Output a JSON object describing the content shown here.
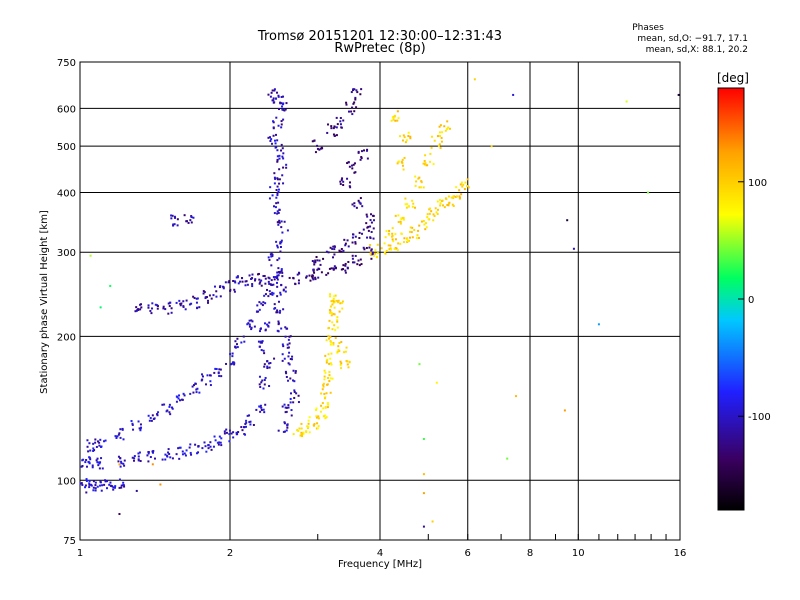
{
  "chart_data": {
    "type": "scatter",
    "title": "Tromsø 20151201 12:30:00–12:31:43",
    "subtitle": "RwPretec (8p)",
    "xlabel": "Frequency [MHz]",
    "ylabel": "Stationary phase Virtual Height [km]",
    "x_scale": "log",
    "y_scale": "log",
    "xlim": [
      1,
      16
    ],
    "ylim": [
      75,
      750
    ],
    "x_ticks": [
      1,
      2,
      4,
      6,
      8,
      10,
      16
    ],
    "y_ticks": [
      75,
      100,
      200,
      300,
      400,
      500,
      600,
      750
    ],
    "x_gridlines": [
      2,
      4,
      6,
      8,
      10
    ],
    "y_gridlines": [
      100,
      200,
      300,
      400,
      500,
      600
    ],
    "grid": true,
    "stats": {
      "heading": "Phases",
      "line1": "mean, sd,O:  −91.7, 17.1",
      "line2": "mean, sd,X:   88.1, 20.2"
    },
    "colorbar": {
      "label": "[deg]",
      "range": [
        -180,
        180
      ],
      "ticks": [
        100,
        0,
        -100
      ],
      "colors": [
        "#000000",
        "#3a0060",
        "#2020ff",
        "#00c8ff",
        "#00ff60",
        "#ffff00",
        "#ffa000",
        "#ff0000"
      ]
    },
    "series": [
      {
        "trace": "low-E-blue",
        "points": [
          [
            1.0,
            108
          ],
          [
            1.05,
            109
          ],
          [
            1.1,
            109
          ],
          [
            1.2,
            110
          ],
          [
            1.3,
            111
          ],
          [
            1.4,
            112
          ],
          [
            1.5,
            113
          ],
          [
            1.6,
            114
          ],
          [
            1.7,
            116
          ],
          [
            1.8,
            118
          ],
          [
            1.9,
            120
          ],
          [
            2.0,
            124
          ],
          [
            2.1,
            128
          ],
          [
            2.2,
            133
          ],
          [
            2.3,
            140
          ],
          [
            1.05,
            118
          ],
          [
            1.1,
            121
          ],
          [
            1.2,
            125
          ],
          [
            1.3,
            130
          ],
          [
            1.4,
            135
          ],
          [
            1.5,
            140
          ],
          [
            1.6,
            148
          ],
          [
            1.7,
            155
          ],
          [
            1.8,
            162
          ],
          [
            1.9,
            170
          ],
          [
            2.0,
            180
          ],
          [
            2.1,
            195
          ],
          [
            2.2,
            210
          ],
          [
            2.3,
            230
          ],
          [
            2.4,
            250
          ],
          [
            1.02,
            98
          ],
          [
            1.05,
            97
          ],
          [
            1.1,
            98
          ],
          [
            1.15,
            97
          ],
          [
            1.2,
            98
          ]
        ],
        "phase": -95
      },
      {
        "trace": "F-blue-2.5MHz",
        "points": [
          [
            2.45,
            640
          ],
          [
            2.5,
            620
          ],
          [
            2.55,
            600
          ],
          [
            2.5,
            560
          ],
          [
            2.45,
            520
          ],
          [
            2.5,
            490
          ],
          [
            2.55,
            460
          ],
          [
            2.5,
            430
          ],
          [
            2.45,
            400
          ],
          [
            2.5,
            370
          ],
          [
            2.55,
            340
          ],
          [
            2.5,
            310
          ],
          [
            2.45,
            290
          ],
          [
            2.5,
            270
          ],
          [
            2.55,
            250
          ],
          [
            2.5,
            230
          ],
          [
            2.55,
            210
          ],
          [
            2.6,
            195
          ],
          [
            2.6,
            180
          ],
          [
            2.65,
            165
          ],
          [
            2.7,
            150
          ],
          [
            2.6,
            140
          ],
          [
            2.55,
            130
          ],
          [
            2.35,
            160
          ],
          [
            2.4,
            175
          ],
          [
            2.3,
            190
          ],
          [
            2.35,
            210
          ]
        ],
        "phase": -100
      },
      {
        "trace": "F-indigo-3-4MHz",
        "points": [
          [
            2.7,
            265
          ],
          [
            2.9,
            268
          ],
          [
            3.0,
            270
          ],
          [
            3.2,
            275
          ],
          [
            3.4,
            280
          ],
          [
            3.6,
            290
          ],
          [
            3.8,
            298
          ],
          [
            3.0,
            290
          ],
          [
            3.2,
            300
          ],
          [
            3.4,
            310
          ],
          [
            3.6,
            320
          ],
          [
            3.8,
            330
          ],
          [
            3.0,
            500
          ],
          [
            3.2,
            540
          ],
          [
            3.3,
            560
          ],
          [
            3.5,
            600
          ],
          [
            3.6,
            640
          ],
          [
            3.4,
            420
          ],
          [
            3.6,
            380
          ],
          [
            3.8,
            350
          ],
          [
            3.5,
            450
          ],
          [
            3.7,
            480
          ]
        ],
        "phase": -120
      },
      {
        "trace": "ledge-1.3-2MHz",
        "points": [
          [
            1.3,
            228
          ],
          [
            1.4,
            228
          ],
          [
            1.5,
            229
          ],
          [
            1.6,
            232
          ],
          [
            1.7,
            236
          ],
          [
            1.8,
            242
          ],
          [
            1.9,
            248
          ],
          [
            2.0,
            254
          ],
          [
            2.1,
            260
          ],
          [
            2.2,
            262
          ],
          [
            2.3,
            263
          ],
          [
            2.4,
            264
          ],
          [
            2.5,
            265
          ],
          [
            1.55,
            350
          ],
          [
            1.65,
            355
          ]
        ],
        "phase": -105
      },
      {
        "trace": "X-yellow-3.2MHz",
        "points": [
          [
            2.75,
            125
          ],
          [
            2.85,
            128
          ],
          [
            2.95,
            132
          ],
          [
            3.05,
            138
          ],
          [
            3.1,
            145
          ],
          [
            3.12,
            155
          ],
          [
            3.15,
            165
          ],
          [
            3.18,
            180
          ],
          [
            3.2,
            195
          ],
          [
            3.22,
            210
          ],
          [
            3.25,
            225
          ],
          [
            3.3,
            235
          ],
          [
            3.2,
            240
          ],
          [
            3.35,
            190
          ],
          [
            3.4,
            175
          ]
        ],
        "phase": 95
      },
      {
        "trace": "X-yellow-4-6MHz",
        "points": [
          [
            3.9,
            302
          ],
          [
            4.1,
            304
          ],
          [
            4.3,
            310
          ],
          [
            4.5,
            320
          ],
          [
            4.7,
            330
          ],
          [
            4.9,
            345
          ],
          [
            5.1,
            360
          ],
          [
            5.3,
            375
          ],
          [
            5.5,
            385
          ],
          [
            5.7,
            400
          ],
          [
            5.9,
            415
          ],
          [
            4.2,
            330
          ],
          [
            4.4,
            350
          ],
          [
            4.6,
            380
          ],
          [
            4.8,
            420
          ],
          [
            5.0,
            470
          ],
          [
            5.2,
            510
          ],
          [
            5.4,
            550
          ],
          [
            4.4,
            460
          ],
          [
            4.5,
            520
          ],
          [
            4.3,
            580
          ]
        ],
        "phase": 100
      }
    ],
    "sparse_points": [
      [
        4.9,
        80
      ],
      [
        5.1,
        82
      ],
      [
        4.9,
        103
      ],
      [
        4.9,
        94
      ],
      [
        4.8,
        175
      ],
      [
        4.9,
        122
      ],
      [
        5.2,
        160
      ],
      [
        7.2,
        111
      ],
      [
        7.5,
        150
      ],
      [
        9.4,
        140
      ],
      [
        9.5,
        350
      ],
      [
        9.8,
        305
      ],
      [
        11.0,
        212
      ],
      [
        12.5,
        620
      ],
      [
        13.8,
        400
      ],
      [
        15.9,
        640
      ],
      [
        1.05,
        295
      ],
      [
        1.1,
        230
      ],
      [
        1.15,
        255
      ],
      [
        1.2,
        108
      ],
      [
        1.3,
        95
      ],
      [
        1.4,
        108
      ],
      [
        1.45,
        98
      ],
      [
        1.2,
        85
      ],
      [
        6.2,
        690
      ],
      [
        6.7,
        500
      ],
      [
        7.4,
        640
      ]
    ]
  }
}
